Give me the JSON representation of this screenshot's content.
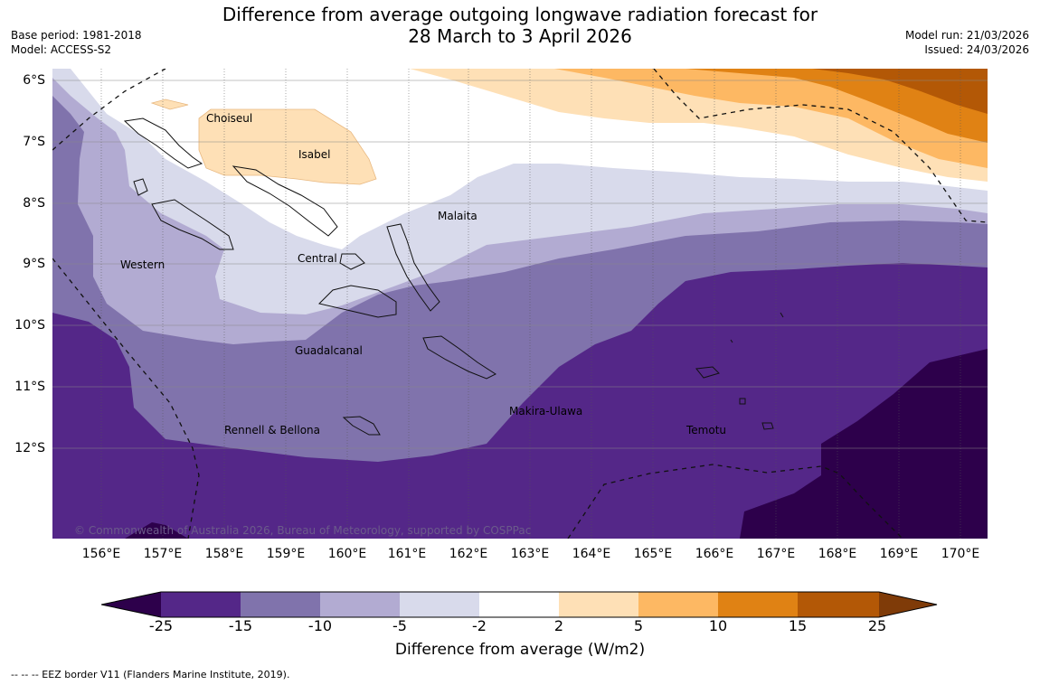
{
  "title": {
    "line1": "Difference from average outgoing longwave radiation forecast for",
    "line2": "28 March to 3 April 2026"
  },
  "meta_left": {
    "base_period": "Base period: 1981-2018",
    "model": "Model: ACCESS-S2"
  },
  "meta_right": {
    "model_run": "Model run: 21/03/2026",
    "issued": "Issued: 24/03/2026"
  },
  "map": {
    "lat_labels": [
      "6°S",
      "7°S",
      "8°S",
      "9°S",
      "10°S",
      "11°S",
      "12°S"
    ],
    "lon_labels": [
      "156°E",
      "157°E",
      "158°E",
      "159°E",
      "160°E",
      "161°E",
      "162°E",
      "163°E",
      "164°E",
      "165°E",
      "166°E",
      "167°E",
      "168°E",
      "169°E",
      "170°E"
    ],
    "regions": [
      "Choiseul",
      "Isabel",
      "Malaita",
      "Western",
      "Central",
      "Guadalcanal",
      "Makira-Ulawa",
      "Rennell & Bellona",
      "Temotu"
    ],
    "copyright": "© Commonwealth of Australia 2026, Bureau of Meteorology, supported by COSPPac"
  },
  "colorbar": {
    "ticks": [
      "-25",
      "-15",
      "-10",
      "-5",
      "-2",
      "2",
      "5",
      "10",
      "15",
      "25"
    ],
    "colors": [
      "#2d004b",
      "#542788",
      "#8073ac",
      "#b2abd2",
      "#d8daeb",
      "#ffffff",
      "#fee0b6",
      "#fdb863",
      "#e08214",
      "#b35806",
      "#7f3b08"
    ],
    "title": "Difference from average (W/m2)"
  },
  "footnote": "--  --  -- EEZ border V11 (Flanders Marine Institute, 2019)."
}
